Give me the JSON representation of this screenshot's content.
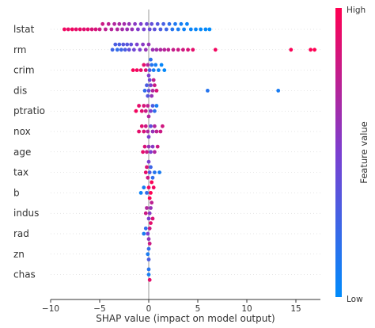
{
  "chart_data": {
    "type": "scatter",
    "subtype": "beeswarm",
    "title": "",
    "xlabel": "SHAP value (impact on model output)",
    "ylabel": "",
    "xlim": [
      -10,
      17.5
    ],
    "xticks": [
      -10,
      -5,
      0,
      5,
      10,
      15
    ],
    "xtick_labels": [
      "−10",
      "−5",
      "0",
      "5",
      "10",
      "15"
    ],
    "grid": false,
    "zero_line": true,
    "features": [
      "lstat",
      "rm",
      "crim",
      "dis",
      "ptratio",
      "nox",
      "age",
      "tax",
      "b",
      "indus",
      "rad",
      "zn",
      "chas"
    ],
    "colorbar": {
      "title": "Feature value",
      "high_label": "High",
      "low_label": "Low",
      "low_color": "#008bfb",
      "high_color": "#ff0052"
    },
    "series": [
      {
        "feature": "lstat",
        "points": [
          [
            -8.6,
            0.95
          ],
          [
            -8.2,
            0.92
          ],
          [
            -7.8,
            0.95
          ],
          [
            -7.4,
            0.9
          ],
          [
            -7.0,
            0.92
          ],
          [
            -6.6,
            0.88
          ],
          [
            -6.2,
            0.9
          ],
          [
            -5.8,
            0.85
          ],
          [
            -5.4,
            0.85
          ],
          [
            -5.0,
            0.8
          ],
          [
            -4.7,
            0.8
          ],
          [
            -4.4,
            0.75
          ],
          [
            -4.1,
            0.75
          ],
          [
            -3.8,
            0.72
          ],
          [
            -3.5,
            0.7
          ],
          [
            -3.2,
            0.7
          ],
          [
            -3.0,
            0.68
          ],
          [
            -2.7,
            0.65
          ],
          [
            -2.5,
            0.65
          ],
          [
            -2.2,
            0.62
          ],
          [
            -2.0,
            0.6
          ],
          [
            -1.7,
            0.6
          ],
          [
            -1.4,
            0.55
          ],
          [
            -1.1,
            0.52
          ],
          [
            -0.8,
            0.5
          ],
          [
            -0.5,
            0.48
          ],
          [
            -0.2,
            0.45
          ],
          [
            0.1,
            0.42
          ],
          [
            0.3,
            0.4
          ],
          [
            0.6,
            0.38
          ],
          [
            0.9,
            0.35
          ],
          [
            1.2,
            0.3
          ],
          [
            1.5,
            0.28
          ],
          [
            1.8,
            0.25
          ],
          [
            2.1,
            0.2
          ],
          [
            2.4,
            0.15
          ],
          [
            2.7,
            0.12
          ],
          [
            3.0,
            0.1
          ],
          [
            3.3,
            0.08
          ],
          [
            3.6,
            0.06
          ],
          [
            3.9,
            0.05
          ],
          [
            4.3,
            0.04
          ],
          [
            4.8,
            0.03
          ],
          [
            5.3,
            0.02
          ],
          [
            5.8,
            0.01
          ],
          [
            6.2,
            0.0
          ]
        ]
      },
      {
        "feature": "rm",
        "points": [
          [
            -3.7,
            0.25
          ],
          [
            -3.4,
            0.3
          ],
          [
            -3.2,
            0.2
          ],
          [
            -3.0,
            0.3
          ],
          [
            -2.8,
            0.25
          ],
          [
            -2.6,
            0.35
          ],
          [
            -2.4,
            0.3
          ],
          [
            -2.2,
            0.35
          ],
          [
            -2.0,
            0.4
          ],
          [
            -1.8,
            0.4
          ],
          [
            -1.5,
            0.45
          ],
          [
            -1.2,
            0.5
          ],
          [
            -0.9,
            0.5
          ],
          [
            -0.6,
            0.55
          ],
          [
            -0.3,
            0.6
          ],
          [
            0.0,
            0.6
          ],
          [
            0.4,
            0.62
          ],
          [
            0.8,
            0.65
          ],
          [
            1.2,
            0.7
          ],
          [
            1.6,
            0.72
          ],
          [
            2.0,
            0.75
          ],
          [
            2.5,
            0.78
          ],
          [
            3.0,
            0.8
          ],
          [
            3.5,
            0.82
          ],
          [
            4.0,
            0.85
          ],
          [
            4.5,
            0.9
          ],
          [
            6.8,
            0.95
          ],
          [
            14.5,
            0.98
          ],
          [
            16.5,
            0.99
          ],
          [
            16.9,
            1.0
          ]
        ]
      },
      {
        "feature": "crim",
        "points": [
          [
            -1.6,
            0.98
          ],
          [
            -1.2,
            0.95
          ],
          [
            -0.8,
            0.92
          ],
          [
            -0.5,
            0.9
          ],
          [
            -0.3,
            0.85
          ],
          [
            -0.1,
            0.7
          ],
          [
            0.0,
            0.5
          ],
          [
            0.1,
            0.3
          ],
          [
            0.2,
            0.2
          ],
          [
            0.3,
            0.15
          ],
          [
            0.5,
            0.1
          ],
          [
            0.7,
            0.08
          ],
          [
            1.0,
            0.05
          ],
          [
            1.3,
            0.03
          ],
          [
            1.6,
            0.02
          ]
        ]
      },
      {
        "feature": "dis",
        "points": [
          [
            -0.4,
            0.2
          ],
          [
            -0.2,
            0.3
          ],
          [
            -0.1,
            0.35
          ],
          [
            0.0,
            0.4
          ],
          [
            0.1,
            0.45
          ],
          [
            0.2,
            0.5
          ],
          [
            0.3,
            0.6
          ],
          [
            0.4,
            0.7
          ],
          [
            0.5,
            0.75
          ],
          [
            0.6,
            0.8
          ],
          [
            0.8,
            0.85
          ],
          [
            6.0,
            0.15
          ],
          [
            13.2,
            0.1
          ]
        ]
      },
      {
        "feature": "ptratio",
        "points": [
          [
            -1.3,
            0.95
          ],
          [
            -1.0,
            0.9
          ],
          [
            -0.7,
            0.88
          ],
          [
            -0.5,
            0.85
          ],
          [
            -0.3,
            0.8
          ],
          [
            -0.1,
            0.75
          ],
          [
            0.0,
            0.7
          ],
          [
            0.2,
            0.5
          ],
          [
            0.4,
            0.3
          ],
          [
            0.6,
            0.2
          ],
          [
            0.8,
            0.1
          ]
        ]
      },
      {
        "feature": "nox",
        "points": [
          [
            -1.0,
            0.9
          ],
          [
            -0.7,
            0.88
          ],
          [
            -0.5,
            0.85
          ],
          [
            -0.3,
            0.8
          ],
          [
            -0.1,
            0.7
          ],
          [
            0.0,
            0.5
          ],
          [
            0.2,
            0.4
          ],
          [
            0.4,
            0.6
          ],
          [
            0.6,
            0.7
          ],
          [
            0.8,
            0.75
          ],
          [
            1.2,
            0.8
          ],
          [
            1.4,
            0.82
          ]
        ]
      },
      {
        "feature": "age",
        "points": [
          [
            -0.6,
            0.9
          ],
          [
            -0.4,
            0.85
          ],
          [
            -0.2,
            0.8
          ],
          [
            0.0,
            0.6
          ],
          [
            0.2,
            0.5
          ],
          [
            0.4,
            0.55
          ],
          [
            0.6,
            0.7
          ],
          [
            0.9,
            0.8
          ]
        ]
      },
      {
        "feature": "tax",
        "points": [
          [
            -0.3,
            0.9
          ],
          [
            -0.2,
            0.85
          ],
          [
            -0.1,
            0.8
          ],
          [
            0.0,
            0.5
          ],
          [
            0.1,
            0.3
          ],
          [
            0.2,
            0.25
          ],
          [
            0.4,
            0.2
          ],
          [
            0.6,
            0.15
          ],
          [
            1.1,
            0.1
          ]
        ]
      },
      {
        "feature": "b",
        "points": [
          [
            -0.8,
            0.05
          ],
          [
            -0.5,
            0.1
          ],
          [
            -0.2,
            0.2
          ],
          [
            0.0,
            0.95
          ],
          [
            0.1,
            0.98
          ],
          [
            0.2,
            1.0
          ],
          [
            0.3,
            0.98
          ],
          [
            0.5,
            0.95
          ]
        ]
      },
      {
        "feature": "indus",
        "points": [
          [
            -0.3,
            0.8
          ],
          [
            -0.2,
            0.7
          ],
          [
            0.0,
            0.5
          ],
          [
            0.1,
            0.55
          ],
          [
            0.2,
            0.6
          ],
          [
            0.3,
            0.75
          ],
          [
            0.4,
            0.85
          ]
        ]
      },
      {
        "feature": "rad",
        "points": [
          [
            -0.5,
            0.1
          ],
          [
            -0.3,
            0.2
          ],
          [
            -0.1,
            0.5
          ],
          [
            0.0,
            0.6
          ],
          [
            0.1,
            0.8
          ],
          [
            0.2,
            0.9
          ]
        ]
      },
      {
        "feature": "zn",
        "points": [
          [
            -0.1,
            0.1
          ],
          [
            0.0,
            0.2
          ],
          [
            0.0,
            0.3
          ],
          [
            0.1,
            0.8
          ]
        ]
      },
      {
        "feature": "chas",
        "points": [
          [
            0.0,
            0.1
          ],
          [
            0.0,
            0.15
          ],
          [
            0.1,
            0.9
          ]
        ]
      }
    ]
  }
}
